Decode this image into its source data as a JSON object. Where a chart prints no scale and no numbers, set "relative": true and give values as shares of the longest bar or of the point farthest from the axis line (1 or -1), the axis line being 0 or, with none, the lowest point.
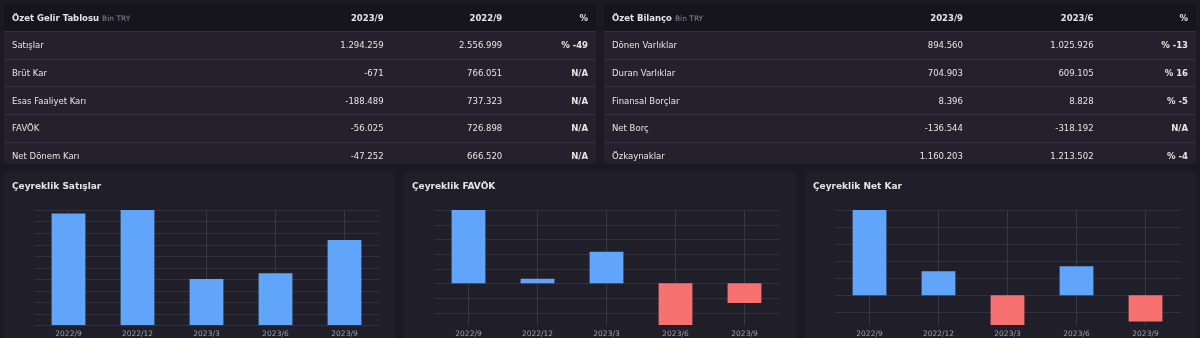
{
  "chart_data": [
    {
      "type": "other",
      "title": "Özet Gelir Tablosu",
      "subtitle": "Bin TRY",
      "annotations": [
        "2023/9",
        "2022/9",
        "%",
        "Satışlar",
        "1.294.259",
        "2.556.999",
        "% -49",
        "Brüt Kar",
        "-671",
        "766.051",
        "N/A",
        "Esas Faaliyet Karı",
        "-188.489",
        "737.323",
        "N/A",
        "FAVÖK",
        "-56.025",
        "726.898",
        "N/A",
        "Net Dönem Karı",
        "-47.252",
        "666.520",
        "N/A"
      ]
    },
    {
      "type": "other",
      "title": "Özet Bilanço",
      "subtitle": "Bin TRY",
      "annotations": [
        "2023/9",
        "2023/6",
        "%",
        "Dönen Varlıklar",
        "894.560",
        "1.025.926",
        "% -13",
        "Duran Varlıklar",
        "704.903",
        "609.105",
        "% 16",
        "Finansal Borçlar",
        "8.396",
        "8.828",
        "% -5",
        "Net Borç",
        "-136.544",
        "-318.192",
        "N/A",
        "Özkaynaklar",
        "1.160.203",
        "1.213.502",
        "% -4"
      ]
    },
    {
      "type": "bar",
      "title": "Çeyreklik Satışlar",
      "relative": true,
      "grid": true,
      "categories": [
        "2022/9",
        "2022/12",
        "2023/3",
        "2023/6",
        "2023/9"
      ],
      "values": [
        0.97,
        1,
        0.4,
        0.45,
        0.74
      ],
      "colors": [
        "#60a5fa",
        "#60a5fa",
        "#60a5fa",
        "#60a5fa",
        "#60a5fa"
      ]
    },
    {
      "type": "bar",
      "title": "Çeyreklik FAVÖK",
      "relative": true,
      "grid": true,
      "categories": [
        "2022/9",
        "2022/12",
        "2023/3",
        "2023/6",
        "2023/9"
      ],
      "values": [
        1,
        0.06,
        0.43,
        -0.57,
        -0.27
      ],
      "colors": [
        "#60a5fa",
        "#60a5fa",
        "#60a5fa",
        "#f87171",
        "#f87171"
      ]
    },
    {
      "type": "bar",
      "title": "Çeyreklik Net Kar",
      "relative": true,
      "grid": true,
      "categories": [
        "2022/9",
        "2022/12",
        "2023/3",
        "2023/6",
        "2023/9"
      ],
      "values": [
        1,
        0.28,
        -0.35,
        0.34,
        -0.31
      ],
      "colors": [
        "#60a5fa",
        "#60a5fa",
        "#f87171",
        "#60a5fa",
        "#f87171"
      ]
    }
  ]
}
